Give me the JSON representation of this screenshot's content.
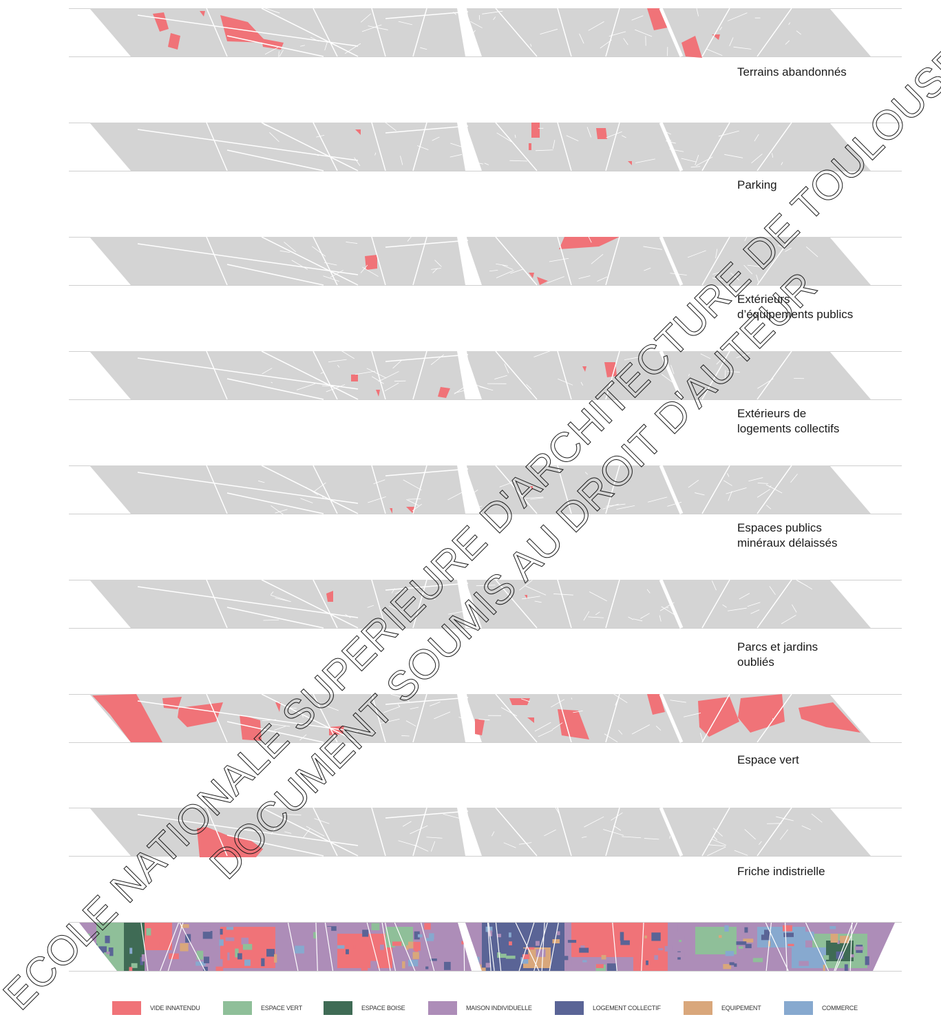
{
  "strips": [
    {
      "id": "terrains",
      "caption": [
        "Terrains abandonnés"
      ],
      "highlight": "#f07378"
    },
    {
      "id": "parking",
      "caption": [
        "Parking"
      ],
      "highlight": "#f07378"
    },
    {
      "id": "equipements",
      "caption": [
        "Extérieurs",
        "d’équipements publics"
      ],
      "highlight": "#f07378"
    },
    {
      "id": "logements",
      "caption": [
        "Extérieurs de",
        "logements collectifs"
      ],
      "highlight": "#f07378"
    },
    {
      "id": "mineraux",
      "caption": [
        "Espaces publics",
        "minéraux délaissés"
      ],
      "highlight": "#f07378"
    },
    {
      "id": "parcs",
      "caption": [
        "Parcs et jardins",
        "oubliés"
      ],
      "highlight": "#f07378"
    },
    {
      "id": "espacevert",
      "caption": [
        "Espace vert"
      ],
      "highlight": "#f07378"
    },
    {
      "id": "friche",
      "caption": [
        "Friche indistrielle"
      ],
      "highlight": "#f07378"
    }
  ],
  "base_color": "#d4d4d4",
  "legend": [
    {
      "label": "VIDE INNATENDU",
      "color": "#f07378"
    },
    {
      "label": "ESPACE VERT",
      "color": "#8fbf99"
    },
    {
      "label": "ESPACE BOISE",
      "color": "#3f6b55"
    },
    {
      "label": "MAISON INDIVIDUELLE",
      "color": "#ad8db8"
    },
    {
      "label": "LOGEMENT COLLECTIF",
      "color": "#5a6496"
    },
    {
      "label": "EQUIPEMENT",
      "color": "#d9a77b"
    },
    {
      "label": "COMMERCE",
      "color": "#87a9cf"
    }
  ],
  "watermark": [
    "ECOLE NATIONALE SUPERIEURE D'ARCHITECTURE DE TOULOUSE",
    "DOCUMENT SOUMIS AU DROIT D'AUTEUR"
  ]
}
